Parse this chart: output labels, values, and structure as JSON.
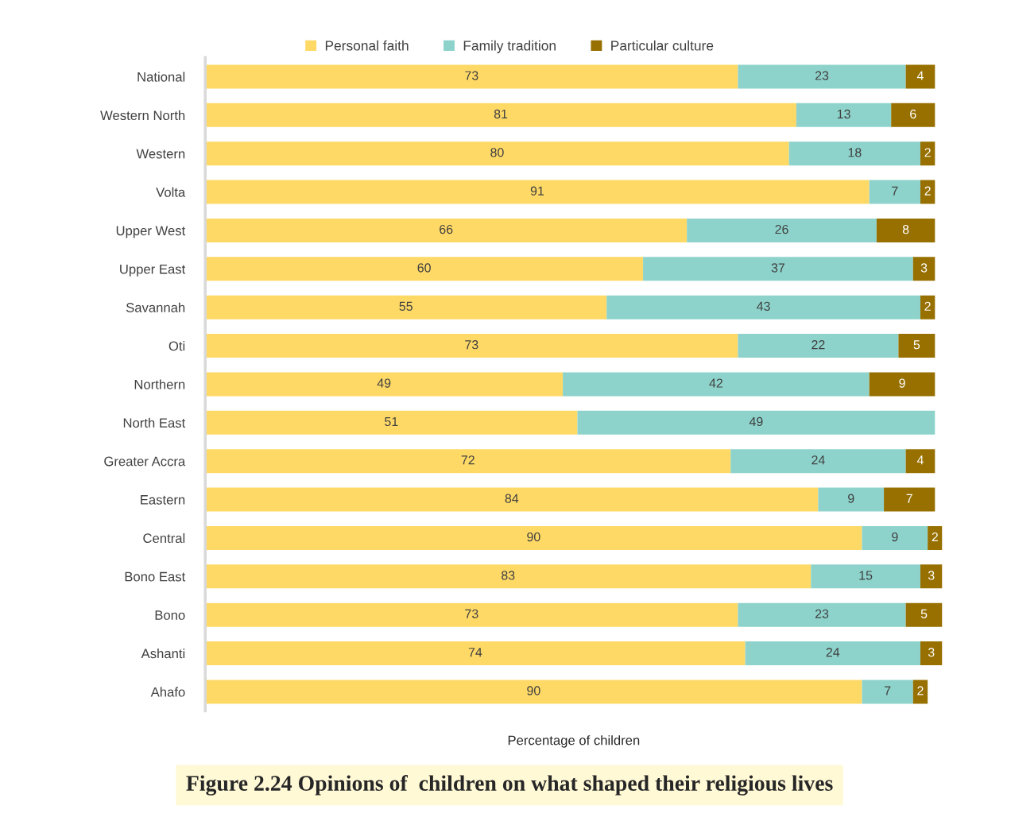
{
  "chart_data": {
    "type": "bar",
    "orientation": "horizontal",
    "stacked": true,
    "data_labels": true,
    "grid": false,
    "legend": "top",
    "tick_labels": "y",
    "title": "Figure 2.24 Opinions of  children on what shaped their religious lives",
    "xlabel": "Percentage of children",
    "categories": [
      "National",
      "Western North",
      "Western",
      "Volta",
      "Upper West",
      "Upper East",
      "Savannah",
      "Oti",
      "Northern",
      "North East",
      "Greater Accra",
      "Eastern",
      "Central",
      "Bono East",
      "Bono",
      "Ashanti",
      "Ahafo"
    ],
    "series": [
      {
        "name": "Personal faith",
        "color": "#ffd966",
        "values": [
          73,
          81,
          80,
          91,
          66,
          60,
          55,
          73,
          49,
          51,
          72,
          84,
          90,
          83,
          73,
          74,
          90
        ]
      },
      {
        "name": "Family tradition",
        "color": "#8dd3cb",
        "values": [
          23,
          13,
          18,
          7,
          26,
          37,
          43,
          22,
          42,
          49,
          24,
          9,
          9,
          15,
          23,
          24,
          7
        ]
      },
      {
        "name": "Particular culture",
        "color": "#977000",
        "values": [
          4,
          6,
          2,
          2,
          8,
          3,
          2,
          5,
          9,
          null,
          4,
          7,
          2,
          3,
          5,
          3,
          2
        ]
      }
    ]
  }
}
